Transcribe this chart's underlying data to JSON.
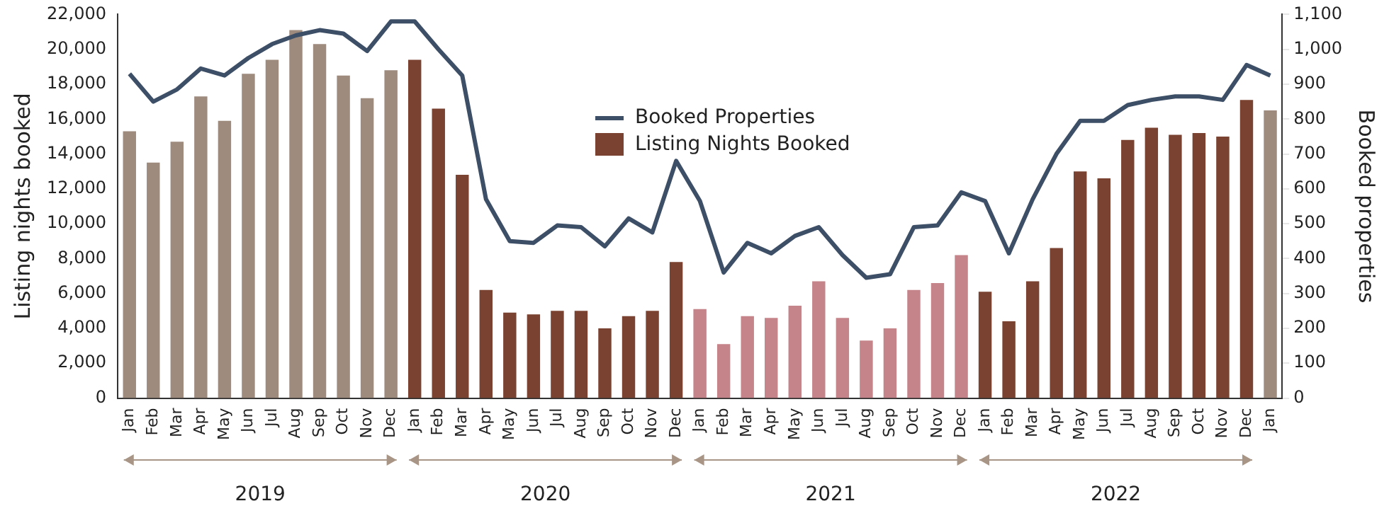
{
  "chart_data": {
    "type": "bar",
    "ylabel": "Listing nights booked",
    "y2label": "Booked properties",
    "categories": [
      "Jan",
      "Feb",
      "Mar",
      "Apr",
      "May",
      "Jun",
      "Jul",
      "Aug",
      "Sep",
      "Oct",
      "Nov",
      "Dec",
      "Jan",
      "Feb",
      "Mar",
      "Apr",
      "May",
      "Jun",
      "Jul",
      "Aug",
      "Sep",
      "Oct",
      "Nov",
      "Dec",
      "Jan",
      "Feb",
      "Mar",
      "Apr",
      "May",
      "Jun",
      "Jul",
      "Aug",
      "Sep",
      "Oct",
      "Nov",
      "Dec",
      "Jan",
      "Feb",
      "Mar",
      "Apr",
      "May",
      "Jun",
      "Jul",
      "Aug",
      "Sep",
      "Oct",
      "Nov",
      "Dec",
      "Jan"
    ],
    "series": [
      {
        "name": "Booked Properties",
        "type": "line",
        "axis": "y2",
        "color": "#3d4f66",
        "values": [
          930,
          850,
          885,
          945,
          925,
          975,
          1015,
          1040,
          1055,
          1045,
          995,
          1080,
          1080,
          1000,
          925,
          570,
          450,
          445,
          495,
          490,
          435,
          515,
          475,
          680,
          565,
          360,
          445,
          415,
          465,
          490,
          410,
          345,
          355,
          490,
          495,
          590,
          565,
          415,
          570,
          700,
          795,
          795,
          840,
          855,
          865,
          865,
          855,
          955,
          925
        ]
      },
      {
        "name": "Listing Nights Booked",
        "color": "#7a4331",
        "values": [
          15300,
          13500,
          14700,
          17300,
          15900,
          18600,
          19400,
          21100,
          20300,
          18500,
          17200,
          18800,
          19400,
          16600,
          12800,
          6200,
          4900,
          4800,
          5000,
          5000,
          4000,
          4700,
          5000,
          7800,
          5100,
          3100,
          4700,
          4600,
          5300,
          6700,
          4600,
          3300,
          4000,
          6200,
          6600,
          8200,
          6100,
          4400,
          6700,
          8600,
          13000,
          12600,
          14800,
          15500,
          15100,
          15200,
          15000,
          17100,
          16500
        ],
        "colors": [
          "#9e8b7e",
          "#9e8b7e",
          "#9e8b7e",
          "#9e8b7e",
          "#9e8b7e",
          "#9e8b7e",
          "#9e8b7e",
          "#9e8b7e",
          "#9e8b7e",
          "#9e8b7e",
          "#9e8b7e",
          "#9e8b7e",
          "#7a4331",
          "#7a4331",
          "#7a4331",
          "#7a4331",
          "#7a4331",
          "#7a4331",
          "#7a4331",
          "#7a4331",
          "#7a4331",
          "#7a4331",
          "#7a4331",
          "#7a4331",
          "#c4848a",
          "#c4848a",
          "#c4848a",
          "#c4848a",
          "#c4848a",
          "#c4848a",
          "#c4848a",
          "#c4848a",
          "#c4848a",
          "#c4848a",
          "#c4848a",
          "#c4848a",
          "#7a4331",
          "#7a4331",
          "#7a4331",
          "#7a4331",
          "#7a4331",
          "#7a4331",
          "#7a4331",
          "#7a4331",
          "#7a4331",
          "#7a4331",
          "#7a4331",
          "#7a4331",
          "#9e8b7e"
        ]
      }
    ],
    "ylim": [
      0,
      22000
    ],
    "yticks": [
      0,
      {
        "value": 2000,
        "label": "2,000"
      },
      {
        "value": 4000,
        "label": "4,000"
      },
      {
        "value": 6000,
        "label": "6,000"
      },
      {
        "value": 8000,
        "label": "8,000"
      },
      {
        "value": 10000,
        "label": "10,000"
      },
      {
        "value": 12000,
        "label": "12,000"
      },
      {
        "value": 14000,
        "label": "14,000"
      },
      {
        "value": 16000,
        "label": "16,000"
      },
      {
        "value": 18000,
        "label": "18,000"
      },
      {
        "value": 20000,
        "label": "20,000"
      },
      {
        "value": 22000,
        "label": "22,000"
      }
    ],
    "y2lim": [
      0,
      1100
    ],
    "y2ticks": [
      0,
      100,
      200,
      300,
      400,
      500,
      600,
      700,
      800,
      900,
      {
        "value": 1000,
        "label": "1,000"
      },
      {
        "value": 1100,
        "label": "1,100"
      }
    ],
    "annotations": [
      "2019",
      "2020",
      "2021",
      "2022"
    ],
    "legend": "top",
    "grid": false,
    "marker": "none",
    "line_style": "solid"
  }
}
